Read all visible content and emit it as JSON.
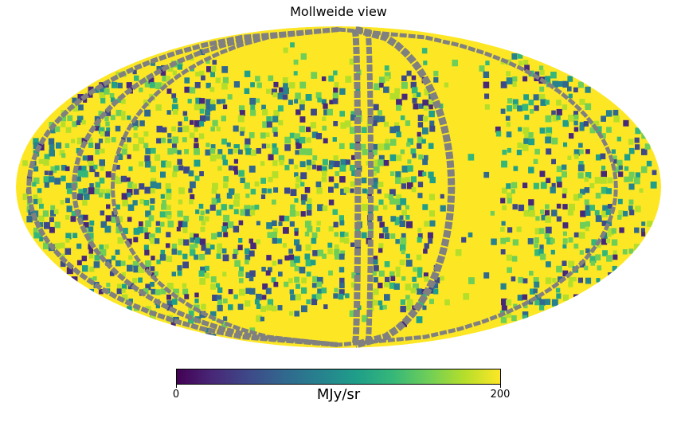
{
  "title": "Mollweide view",
  "colorbar": {
    "min_label": "0",
    "max_label": "200",
    "unit": "MJy/sr",
    "colormap": "viridis",
    "range": [
      0,
      200
    ]
  },
  "colors": {
    "background_fill": "#fde725",
    "missing_pixel": "#808080"
  },
  "projection": "mollweide"
}
